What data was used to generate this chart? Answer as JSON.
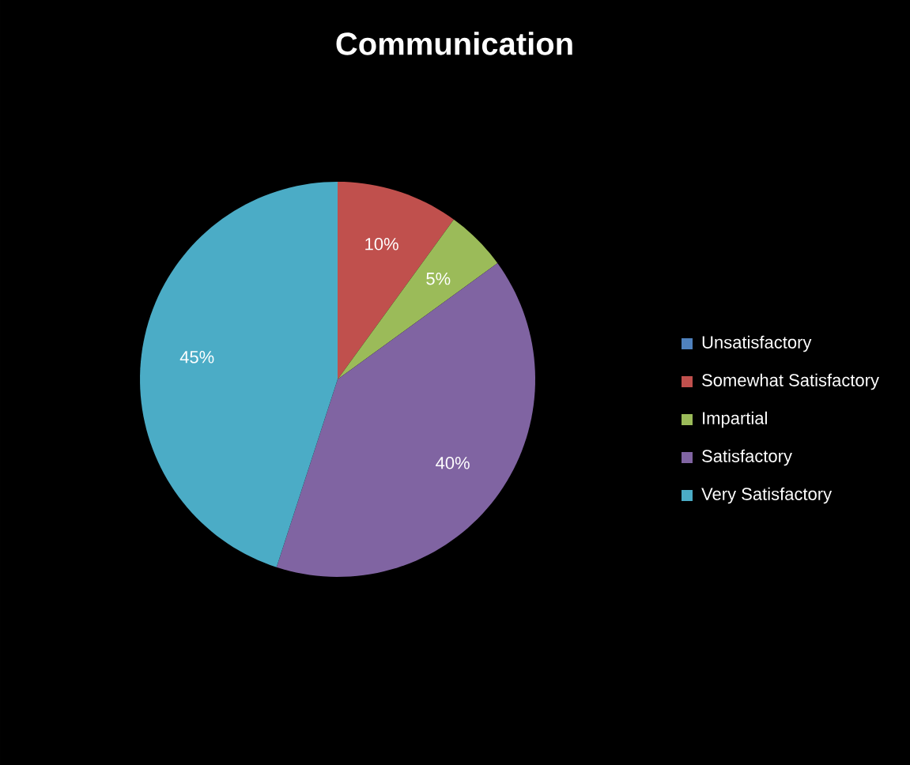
{
  "chart_data": {
    "type": "pie",
    "title": "Communication",
    "categories": [
      "Unsatisfactory",
      "Somewhat Satisfactory",
      "Impartial",
      "Satisfactory",
      "Very Satisfactory"
    ],
    "values": [
      0,
      10,
      5,
      40,
      45
    ],
    "colors": [
      "#4f81bd",
      "#c0504d",
      "#9bbb59",
      "#8064a2",
      "#4bacc6"
    ],
    "value_labels": [
      null,
      "10%",
      "5%",
      "40%",
      "45%"
    ],
    "legend": "right"
  }
}
